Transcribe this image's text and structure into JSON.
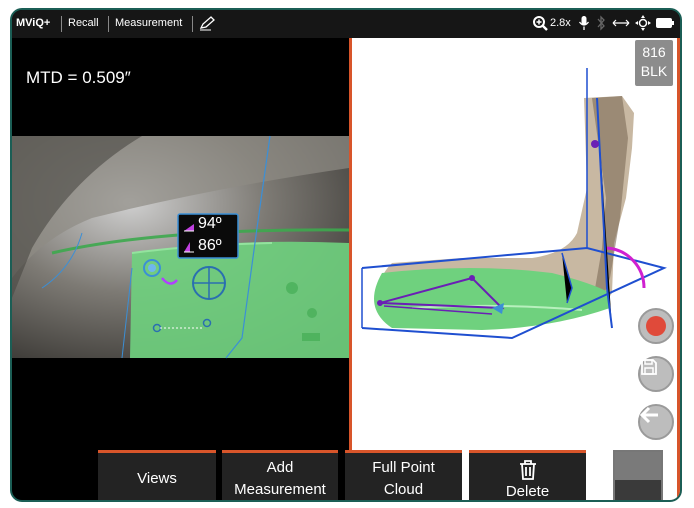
{
  "topbar": {
    "brand": "MViQ+",
    "recall": "Recall",
    "measurement": "Measurement",
    "zoom": "2.8x",
    "icons": [
      "edit-icon",
      "zoom-in-icon",
      "mic-icon",
      "bluetooth-icon",
      "arrows-icon",
      "joystick-icon",
      "battery-icon"
    ]
  },
  "left_view": {
    "mtd": "MTD = 0.509″",
    "angle1": "94º",
    "angle2": "86º"
  },
  "right_view": {
    "badge_line1": "816",
    "badge_line2": "BLK"
  },
  "bottom": {
    "views": "Views",
    "add_line1": "Add",
    "add_line2": "Measurement",
    "fpc_line1": "Full Point",
    "fpc_line2": "Cloud",
    "delete": "Delete"
  },
  "colors": {
    "accent": "#d8552a",
    "green_overlay": "#5fcf6a",
    "purple": "#8a2be2",
    "blue": "#1f4fd0"
  }
}
